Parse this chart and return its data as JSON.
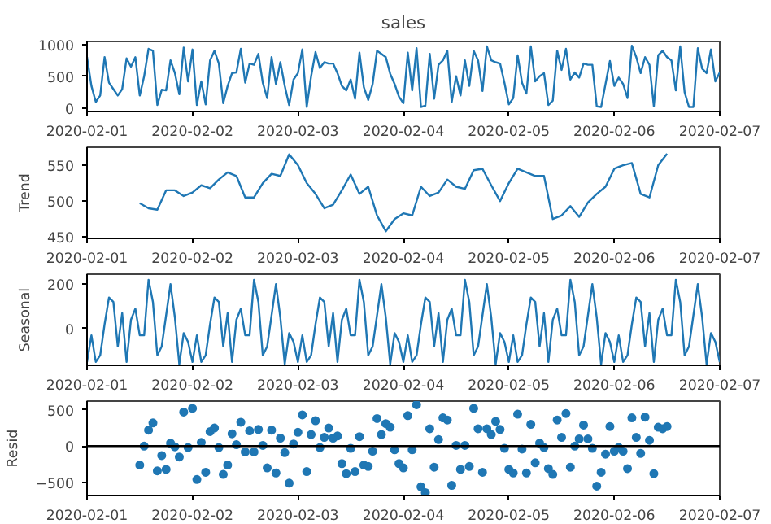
{
  "chart_data": [
    {
      "type": "line",
      "title": "sales",
      "xlim": [
        "2020-02-01",
        "2020-02-07"
      ],
      "xticks": [
        "2020-02-01",
        "2020-02-02",
        "2020-02-03",
        "2020-02-04",
        "2020-02-05",
        "2020-02-06",
        "2020-02-07"
      ],
      "ylim": [
        -50,
        1045
      ],
      "yticks": [
        0,
        500,
        1000
      ],
      "grid": false,
      "marker": "none",
      "line_style": "solid",
      "series": [
        {
          "color": "#1f77b4",
          "x": [
            "2020-02-01T00:00",
            "2020-02-01T01:00",
            "2020-02-01T02:00",
            "2020-02-01T03:00",
            "2020-02-01T04:00",
            "2020-02-01T05:00",
            "2020-02-01T06:00",
            "2020-02-01T07:00",
            "2020-02-01T08:00",
            "2020-02-01T09:00",
            "2020-02-01T10:00",
            "2020-02-01T11:00",
            "2020-02-01T12:00",
            "2020-02-01T13:00",
            "2020-02-01T14:00",
            "2020-02-01T15:00",
            "2020-02-01T16:00",
            "2020-02-01T17:00",
            "2020-02-01T18:00",
            "2020-02-01T19:00",
            "2020-02-01T20:00",
            "2020-02-01T21:00",
            "2020-02-01T22:00",
            "2020-02-01T23:00",
            "2020-02-02T00:00",
            "2020-02-02T01:00",
            "2020-02-02T02:00",
            "2020-02-02T03:00",
            "2020-02-02T04:00",
            "2020-02-02T05:00",
            "2020-02-02T06:00",
            "2020-02-02T07:00",
            "2020-02-02T08:00",
            "2020-02-02T09:00",
            "2020-02-02T10:00",
            "2020-02-02T11:00",
            "2020-02-02T12:00",
            "2020-02-02T13:00",
            "2020-02-02T14:00",
            "2020-02-02T15:00",
            "2020-02-02T16:00",
            "2020-02-02T17:00",
            "2020-02-02T18:00",
            "2020-02-02T19:00",
            "2020-02-02T20:00",
            "2020-02-02T21:00",
            "2020-02-02T22:00",
            "2020-02-02T23:00",
            "2020-02-03T00:00",
            "2020-02-03T01:00",
            "2020-02-03T02:00",
            "2020-02-03T03:00",
            "2020-02-03T04:00",
            "2020-02-03T05:00",
            "2020-02-03T06:00",
            "2020-02-03T07:00",
            "2020-02-03T08:00",
            "2020-02-03T09:00",
            "2020-02-03T10:00",
            "2020-02-03T11:00",
            "2020-02-03T12:00",
            "2020-02-03T13:00",
            "2020-02-03T14:00",
            "2020-02-03T15:00",
            "2020-02-03T16:00",
            "2020-02-03T17:00",
            "2020-02-03T18:00",
            "2020-02-03T19:00",
            "2020-02-03T20:00",
            "2020-02-03T21:00",
            "2020-02-03T22:00",
            "2020-02-03T23:00",
            "2020-02-04T00:00",
            "2020-02-04T01:00",
            "2020-02-04T02:00",
            "2020-02-04T03:00",
            "2020-02-04T04:00",
            "2020-02-04T05:00",
            "2020-02-04T06:00",
            "2020-02-04T07:00",
            "2020-02-04T08:00",
            "2020-02-04T09:00",
            "2020-02-04T10:00",
            "2020-02-04T11:00",
            "2020-02-04T12:00",
            "2020-02-04T13:00",
            "2020-02-04T14:00",
            "2020-02-04T15:00",
            "2020-02-04T16:00",
            "2020-02-04T17:00",
            "2020-02-04T18:00",
            "2020-02-04T19:00",
            "2020-02-04T20:00",
            "2020-02-04T21:00",
            "2020-02-04T22:00",
            "2020-02-04T23:00",
            "2020-02-05T00:00",
            "2020-02-05T01:00",
            "2020-02-05T02:00",
            "2020-02-05T03:00",
            "2020-02-05T04:00",
            "2020-02-05T05:00",
            "2020-02-05T06:00",
            "2020-02-05T07:00",
            "2020-02-05T08:00",
            "2020-02-05T09:00",
            "2020-02-05T10:00",
            "2020-02-05T11:00",
            "2020-02-05T12:00",
            "2020-02-05T13:00",
            "2020-02-05T14:00",
            "2020-02-05T15:00",
            "2020-02-05T16:00",
            "2020-02-05T17:00",
            "2020-02-05T18:00",
            "2020-02-05T19:00",
            "2020-02-05T20:00",
            "2020-02-05T21:00",
            "2020-02-05T22:00",
            "2020-02-05T23:00",
            "2020-02-06T00:00",
            "2020-02-06T01:00",
            "2020-02-06T02:00",
            "2020-02-06T03:00",
            "2020-02-06T04:00",
            "2020-02-06T05:00",
            "2020-02-06T06:00",
            "2020-02-06T07:00",
            "2020-02-06T08:00",
            "2020-02-06T09:00",
            "2020-02-06T10:00",
            "2020-02-06T11:00",
            "2020-02-06T12:00",
            "2020-02-06T13:00",
            "2020-02-06T14:00",
            "2020-02-06T15:00",
            "2020-02-06T16:00",
            "2020-02-06T17:00",
            "2020-02-06T18:00",
            "2020-02-06T19:00",
            "2020-02-06T20:00",
            "2020-02-06T21:00",
            "2020-02-06T22:00",
            "2020-02-06T23:00",
            "2020-02-07T00:00"
          ],
          "values": [
            800,
            350,
            100,
            200,
            800,
            400,
            300,
            200,
            300,
            780,
            650,
            800,
            200,
            500,
            930,
            900,
            50,
            290,
            280,
            750,
            550,
            220,
            950,
            420,
            920,
            50,
            420,
            60,
            750,
            900,
            700,
            80,
            350,
            550,
            560,
            930,
            400,
            700,
            680,
            850,
            400,
            160,
            800,
            380,
            720,
            350,
            50,
            450,
            550,
            920,
            20,
            500,
            880,
            630,
            720,
            700,
            700,
            550,
            350,
            280,
            450,
            150,
            870,
            330,
            130,
            380,
            900,
            850,
            800,
            540,
            380,
            180,
            80,
            870,
            280,
            940,
            20,
            40,
            850,
            150,
            680,
            750,
            900,
            100,
            500,
            200,
            750,
            350,
            900,
            750,
            270,
            970,
            750,
            720,
            700,
            400,
            60,
            160,
            830,
            400,
            230,
            970,
            420,
            500,
            550,
            50,
            120,
            900,
            600,
            930,
            450,
            560,
            480,
            700,
            680,
            680,
            30,
            20,
            380,
            740,
            350,
            480,
            380,
            160,
            980,
            800,
            550,
            800,
            680,
            30,
            830,
            900,
            800,
            750,
            280,
            970,
            250,
            20,
            20,
            940,
            620,
            550,
            920,
            420,
            560
          ]
        }
      ]
    },
    {
      "type": "line",
      "ylabel": "Trend",
      "xlim": [
        "2020-02-01",
        "2020-02-07"
      ],
      "xticks": [
        "2020-02-01",
        "2020-02-02",
        "2020-02-03",
        "2020-02-04",
        "2020-02-05",
        "2020-02-06",
        "2020-02-07"
      ],
      "ylim": [
        448,
        575
      ],
      "yticks": [
        450,
        500,
        550
      ],
      "grid": false,
      "marker": "none",
      "line_style": "solid",
      "series": [
        {
          "color": "#1f77b4",
          "x": [
            "2020-02-01T12:00",
            "2020-02-01T14:00",
            "2020-02-01T16:00",
            "2020-02-01T18:00",
            "2020-02-01T20:00",
            "2020-02-01T22:00",
            "2020-02-02T00:00",
            "2020-02-02T02:00",
            "2020-02-02T04:00",
            "2020-02-02T06:00",
            "2020-02-02T08:00",
            "2020-02-02T10:00",
            "2020-02-02T12:00",
            "2020-02-02T14:00",
            "2020-02-02T16:00",
            "2020-02-02T18:00",
            "2020-02-02T20:00",
            "2020-02-02T22:00",
            "2020-02-03T00:00",
            "2020-02-03T02:00",
            "2020-02-03T04:00",
            "2020-02-03T06:00",
            "2020-02-03T08:00",
            "2020-02-03T10:00",
            "2020-02-03T12:00",
            "2020-02-03T14:00",
            "2020-02-03T16:00",
            "2020-02-03T18:00",
            "2020-02-03T20:00",
            "2020-02-03T22:00",
            "2020-02-04T00:00",
            "2020-02-04T02:00",
            "2020-02-04T04:00",
            "2020-02-04T06:00",
            "2020-02-04T08:00",
            "2020-02-04T10:00",
            "2020-02-04T12:00",
            "2020-02-04T14:00",
            "2020-02-04T16:00",
            "2020-02-04T18:00",
            "2020-02-04T20:00",
            "2020-02-04T22:00",
            "2020-02-05T00:00",
            "2020-02-05T02:00",
            "2020-02-05T04:00",
            "2020-02-05T06:00",
            "2020-02-05T08:00",
            "2020-02-05T10:00",
            "2020-02-05T12:00",
            "2020-02-05T14:00",
            "2020-02-05T16:00",
            "2020-02-05T18:00",
            "2020-02-05T20:00",
            "2020-02-05T22:00",
            "2020-02-06T00:00",
            "2020-02-06T02:00",
            "2020-02-06T04:00",
            "2020-02-06T06:00",
            "2020-02-06T08:00",
            "2020-02-06T10:00",
            "2020-02-06T12:00"
          ],
          "values": [
            497,
            490,
            488,
            515,
            515,
            507,
            512,
            522,
            518,
            530,
            540,
            535,
            505,
            505,
            525,
            538,
            535,
            565,
            550,
            525,
            510,
            490,
            495,
            515,
            537,
            510,
            520,
            480,
            458,
            475,
            483,
            480,
            520,
            507,
            512,
            530,
            520,
            517,
            543,
            545,
            522,
            500,
            525,
            545,
            540,
            535,
            535,
            475,
            480,
            493,
            478,
            498,
            510,
            520,
            545,
            550,
            553,
            510,
            505,
            550,
            566
          ]
        }
      ]
    },
    {
      "type": "line",
      "ylabel": "Seasonal",
      "xlim": [
        "2020-02-01",
        "2020-02-07"
      ],
      "xticks": [
        "2020-02-01",
        "2020-02-02",
        "2020-02-03",
        "2020-02-04",
        "2020-02-05",
        "2020-02-06",
        "2020-02-07"
      ],
      "ylim": [
        -165,
        245
      ],
      "yticks": [
        0,
        200
      ],
      "grid": false,
      "marker": "none",
      "line_style": "solid",
      "series": [
        {
          "color": "#1f77b4",
          "x": [
            "2020-02-01T00:00",
            "2020-02-01T01:00",
            "2020-02-01T02:00",
            "2020-02-01T03:00",
            "2020-02-01T04:00",
            "2020-02-01T05:00",
            "2020-02-01T06:00",
            "2020-02-01T07:00",
            "2020-02-01T08:00",
            "2020-02-01T09:00",
            "2020-02-01T10:00",
            "2020-02-01T11:00",
            "2020-02-01T12:00",
            "2020-02-01T13:00",
            "2020-02-01T14:00",
            "2020-02-01T15:00",
            "2020-02-01T16:00",
            "2020-02-01T17:00",
            "2020-02-01T18:00",
            "2020-02-01T19:00",
            "2020-02-01T20:00",
            "2020-02-01T21:00",
            "2020-02-01T22:00",
            "2020-02-01T23:00",
            "2020-02-02T00:00",
            "2020-02-02T01:00",
            "2020-02-02T02:00",
            "2020-02-02T03:00",
            "2020-02-02T04:00",
            "2020-02-02T05:00",
            "2020-02-02T06:00",
            "2020-02-02T07:00",
            "2020-02-02T08:00",
            "2020-02-02T09:00",
            "2020-02-02T10:00",
            "2020-02-02T11:00",
            "2020-02-02T12:00",
            "2020-02-02T13:00",
            "2020-02-02T14:00",
            "2020-02-02T15:00",
            "2020-02-02T16:00",
            "2020-02-02T17:00",
            "2020-02-02T18:00",
            "2020-02-02T19:00",
            "2020-02-02T20:00",
            "2020-02-02T21:00",
            "2020-02-02T22:00",
            "2020-02-02T23:00",
            "2020-02-03T00:00",
            "2020-02-03T01:00",
            "2020-02-03T02:00",
            "2020-02-03T03:00",
            "2020-02-03T04:00",
            "2020-02-03T05:00",
            "2020-02-03T06:00",
            "2020-02-03T07:00",
            "2020-02-03T08:00",
            "2020-02-03T09:00",
            "2020-02-03T10:00",
            "2020-02-03T11:00",
            "2020-02-03T12:00",
            "2020-02-03T13:00",
            "2020-02-03T14:00",
            "2020-02-03T15:00",
            "2020-02-03T16:00",
            "2020-02-03T17:00",
            "2020-02-03T18:00",
            "2020-02-03T19:00",
            "2020-02-03T20:00",
            "2020-02-03T21:00",
            "2020-02-03T22:00",
            "2020-02-03T23:00",
            "2020-02-04T00:00",
            "2020-02-04T01:00",
            "2020-02-04T02:00",
            "2020-02-04T03:00",
            "2020-02-04T04:00",
            "2020-02-04T05:00",
            "2020-02-04T06:00",
            "2020-02-04T07:00",
            "2020-02-04T08:00",
            "2020-02-04T09:00",
            "2020-02-04T10:00",
            "2020-02-04T11:00",
            "2020-02-04T12:00",
            "2020-02-04T13:00",
            "2020-02-04T14:00",
            "2020-02-04T15:00",
            "2020-02-04T16:00",
            "2020-02-04T17:00",
            "2020-02-04T18:00",
            "2020-02-04T19:00",
            "2020-02-04T20:00",
            "2020-02-04T21:00",
            "2020-02-04T22:00",
            "2020-02-04T23:00",
            "2020-02-05T00:00",
            "2020-02-05T01:00",
            "2020-02-05T02:00",
            "2020-02-05T03:00",
            "2020-02-05T04:00",
            "2020-02-05T05:00",
            "2020-02-05T06:00",
            "2020-02-05T07:00",
            "2020-02-05T08:00",
            "2020-02-05T09:00",
            "2020-02-05T10:00",
            "2020-02-05T11:00",
            "2020-02-05T12:00",
            "2020-02-05T13:00",
            "2020-02-05T14:00",
            "2020-02-05T15:00",
            "2020-02-05T16:00",
            "2020-02-05T17:00",
            "2020-02-05T18:00",
            "2020-02-05T19:00",
            "2020-02-05T20:00",
            "2020-02-05T21:00",
            "2020-02-05T22:00",
            "2020-02-05T23:00",
            "2020-02-06T00:00",
            "2020-02-06T01:00",
            "2020-02-06T02:00",
            "2020-02-06T03:00",
            "2020-02-06T04:00",
            "2020-02-06T05:00",
            "2020-02-06T06:00",
            "2020-02-06T07:00",
            "2020-02-06T08:00",
            "2020-02-06T09:00",
            "2020-02-06T10:00",
            "2020-02-06T11:00",
            "2020-02-06T12:00",
            "2020-02-06T13:00",
            "2020-02-06T14:00",
            "2020-02-06T15:00",
            "2020-02-06T16:00",
            "2020-02-06T17:00",
            "2020-02-06T18:00",
            "2020-02-06T19:00",
            "2020-02-06T20:00",
            "2020-02-06T21:00",
            "2020-02-06T22:00",
            "2020-02-06T23:00",
            "2020-02-07T00:00"
          ],
          "values": [
            -150,
            -30,
            -150,
            -120,
            20,
            140,
            120,
            -80,
            70,
            -150,
            40,
            90,
            -30,
            -30,
            220,
            120,
            -120,
            -80,
            60,
            200,
            50,
            -160,
            -20,
            -60,
            -150,
            -30,
            -150,
            -120,
            20,
            140,
            120,
            -80,
            70,
            -150,
            40,
            90,
            -30,
            -30,
            220,
            120,
            -120,
            -80,
            60,
            200,
            50,
            -160,
            -20,
            -60,
            -150,
            -30,
            -150,
            -120,
            20,
            140,
            120,
            -80,
            70,
            -150,
            40,
            90,
            -30,
            -30,
            220,
            120,
            -120,
            -80,
            60,
            200,
            50,
            -160,
            -20,
            -60,
            -150,
            -30,
            -150,
            -120,
            20,
            140,
            120,
            -80,
            70,
            -150,
            40,
            90,
            -30,
            -30,
            220,
            120,
            -120,
            -80,
            60,
            200,
            50,
            -160,
            -20,
            -60,
            -150,
            -30,
            -150,
            -120,
            20,
            140,
            120,
            -80,
            70,
            -150,
            40,
            90,
            -30,
            -30,
            220,
            120,
            -120,
            -80,
            60,
            200,
            50,
            -160,
            -20,
            -60,
            -150,
            -30,
            -150,
            -120,
            20,
            140,
            120,
            -80,
            70,
            -150,
            40,
            90,
            -30,
            -30,
            220,
            120,
            -120,
            -80,
            60,
            200,
            50,
            -160,
            -20,
            -60,
            -150
          ]
        }
      ]
    },
    {
      "type": "scatter",
      "ylabel": "Resid",
      "xlim": [
        "2020-02-01",
        "2020-02-07"
      ],
      "xticks": [
        "2020-02-01",
        "2020-02-02",
        "2020-02-03",
        "2020-02-04",
        "2020-02-05",
        "2020-02-06",
        "2020-02-07"
      ],
      "ylim": [
        -680,
        620
      ],
      "yticks": [
        -500,
        0,
        500
      ],
      "grid": false,
      "marker": "circle",
      "ref_lines": [
        {
          "axis": "y",
          "value": 0,
          "color": "#000000",
          "line_style": "solid"
        }
      ],
      "series": [
        {
          "color": "#1f77b4",
          "x": [
            "2020-02-01T12:00",
            "2020-02-01T13:00",
            "2020-02-01T14:00",
            "2020-02-01T15:00",
            "2020-02-01T16:00",
            "2020-02-01T17:00",
            "2020-02-01T18:00",
            "2020-02-01T19:00",
            "2020-02-01T20:00",
            "2020-02-01T21:00",
            "2020-02-01T22:00",
            "2020-02-01T23:00",
            "2020-02-02T00:00",
            "2020-02-02T01:00",
            "2020-02-02T02:00",
            "2020-02-02T03:00",
            "2020-02-02T04:00",
            "2020-02-02T05:00",
            "2020-02-02T06:00",
            "2020-02-02T07:00",
            "2020-02-02T08:00",
            "2020-02-02T09:00",
            "2020-02-02T10:00",
            "2020-02-02T11:00",
            "2020-02-02T12:00",
            "2020-02-02T13:00",
            "2020-02-02T14:00",
            "2020-02-02T15:00",
            "2020-02-02T16:00",
            "2020-02-02T17:00",
            "2020-02-02T18:00",
            "2020-02-02T19:00",
            "2020-02-02T20:00",
            "2020-02-02T21:00",
            "2020-02-02T22:00",
            "2020-02-02T23:00",
            "2020-02-03T00:00",
            "2020-02-03T01:00",
            "2020-02-03T02:00",
            "2020-02-03T03:00",
            "2020-02-03T04:00",
            "2020-02-03T05:00",
            "2020-02-03T06:00",
            "2020-02-03T07:00",
            "2020-02-03T08:00",
            "2020-02-03T09:00",
            "2020-02-03T10:00",
            "2020-02-03T11:00",
            "2020-02-03T12:00",
            "2020-02-03T13:00",
            "2020-02-03T14:00",
            "2020-02-03T15:00",
            "2020-02-03T16:00",
            "2020-02-03T17:00",
            "2020-02-03T18:00",
            "2020-02-03T19:00",
            "2020-02-03T20:00",
            "2020-02-03T21:00",
            "2020-02-03T22:00",
            "2020-02-03T23:00",
            "2020-02-04T00:00",
            "2020-02-04T01:00",
            "2020-02-04T02:00",
            "2020-02-04T03:00",
            "2020-02-04T04:00",
            "2020-02-04T05:00",
            "2020-02-04T06:00",
            "2020-02-04T07:00",
            "2020-02-04T08:00",
            "2020-02-04T09:00",
            "2020-02-04T10:00",
            "2020-02-04T11:00",
            "2020-02-04T12:00",
            "2020-02-04T13:00",
            "2020-02-04T14:00",
            "2020-02-04T15:00",
            "2020-02-04T16:00",
            "2020-02-04T17:00",
            "2020-02-04T18:00",
            "2020-02-04T19:00",
            "2020-02-04T20:00",
            "2020-02-04T21:00",
            "2020-02-04T22:00",
            "2020-02-04T23:00",
            "2020-02-05T00:00",
            "2020-02-05T01:00",
            "2020-02-05T02:00",
            "2020-02-05T03:00",
            "2020-02-05T04:00",
            "2020-02-05T05:00",
            "2020-02-05T06:00",
            "2020-02-05T07:00",
            "2020-02-05T08:00",
            "2020-02-05T09:00",
            "2020-02-05T10:00",
            "2020-02-05T11:00",
            "2020-02-05T12:00",
            "2020-02-05T13:00",
            "2020-02-05T14:00",
            "2020-02-05T15:00",
            "2020-02-05T16:00",
            "2020-02-05T17:00",
            "2020-02-05T18:00",
            "2020-02-05T19:00",
            "2020-02-05T20:00",
            "2020-02-05T21:00",
            "2020-02-05T22:00",
            "2020-02-05T23:00",
            "2020-02-06T00:00",
            "2020-02-06T01:00",
            "2020-02-06T02:00",
            "2020-02-06T03:00",
            "2020-02-06T04:00",
            "2020-02-06T05:00",
            "2020-02-06T06:00",
            "2020-02-06T07:00",
            "2020-02-06T08:00",
            "2020-02-06T09:00",
            "2020-02-06T10:00",
            "2020-02-06T11:00",
            "2020-02-06T12:00"
          ],
          "values": [
            -260,
            0,
            220,
            320,
            -340,
            -130,
            -320,
            40,
            -10,
            -150,
            470,
            -20,
            520,
            -460,
            50,
            -360,
            200,
            250,
            -20,
            -390,
            -260,
            170,
            20,
            330,
            -80,
            210,
            -80,
            230,
            10,
            -300,
            220,
            -370,
            110,
            -90,
            -510,
            30,
            190,
            430,
            -350,
            160,
            350,
            -20,
            120,
            250,
            110,
            140,
            -240,
            -380,
            -30,
            -350,
            130,
            -260,
            -280,
            -70,
            380,
            160,
            310,
            260,
            -50,
            -240,
            -300,
            420,
            -50,
            570,
            -560,
            -640,
            240,
            -290,
            90,
            390,
            360,
            -540,
            10,
            -320,
            10,
            -280,
            520,
            240,
            -360,
            240,
            160,
            340,
            230,
            -30,
            -320,
            -370,
            440,
            -40,
            -370,
            300,
            -230,
            40,
            -20,
            -310,
            -390,
            360,
            120,
            450,
            -290,
            0,
            100,
            290,
            100,
            -30,
            -550,
            -360,
            -110,
            270,
            -70,
            -20,
            -70,
            -310,
            390,
            120,
            -100,
            400,
            80,
            -380,
            260,
            240,
            270
          ]
        }
      ]
    }
  ]
}
